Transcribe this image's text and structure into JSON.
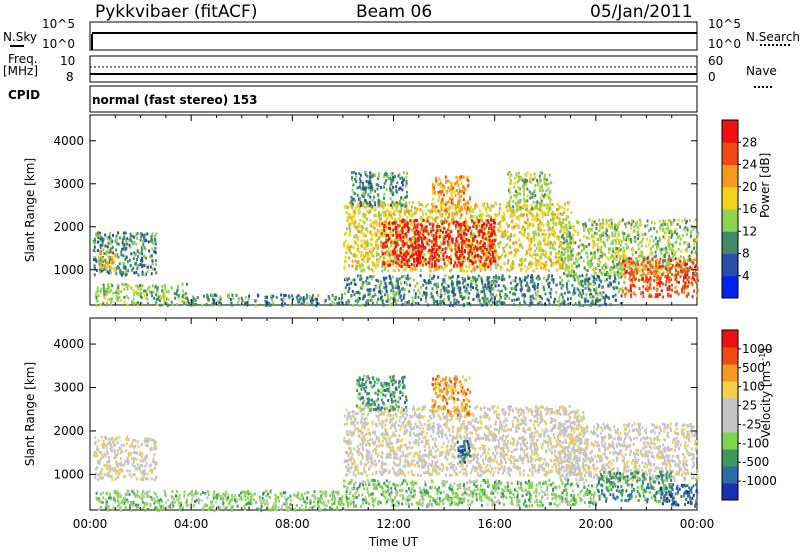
{
  "header": {
    "station": "Pykkvibaer (fitACF)",
    "beam": "Beam 06",
    "date": "05/Jan/2011"
  },
  "status_panels": {
    "nsky_label": "N.Sky",
    "nsearch_label": "N.Search",
    "nsky_ticks": [
      "10^5",
      "10^0"
    ],
    "nsearch_ticks": [
      "10^5",
      "10^0"
    ],
    "freq_label_1": "Freq.",
    "freq_label_2": "[MHz]",
    "freq_ticks": [
      "10",
      "8"
    ],
    "nave_label": "Nave",
    "nave_ticks": [
      "60",
      "0"
    ],
    "cpid_label": "CPID",
    "mode_text": "normal (fast stereo) 153"
  },
  "power_colors": [
    "#0022ee",
    "#2a4fa8",
    "#3f8a6a",
    "#8ed34d",
    "#f2d21a",
    "#f39a1c",
    "#f04a12",
    "#ee1111"
  ],
  "velocity_colors": [
    "#ee1111",
    "#f04a12",
    "#f39a1c",
    "#f6d04a",
    "#c4c4c4",
    "#c4c4c4",
    "#7fd64a",
    "#3e9a5a",
    "#2e6aa8",
    "#1a2fb0"
  ],
  "chart_data": [
    {
      "type": "heatmap",
      "panel": "power",
      "ylabel": "Slant Range [km]",
      "xlabel": "",
      "colorbar_label": "Power [dB]",
      "colorbar_ticks": [
        "28",
        "24",
        "20",
        "16",
        "12",
        "8",
        "4"
      ],
      "colorbar_range": [
        0,
        32
      ],
      "x_ticks": [
        "00:00",
        "04:00",
        "08:00",
        "12:00",
        "16:00",
        "20:00",
        "00:00"
      ],
      "xlim": [
        0,
        24
      ],
      "y_ticks": [
        "4000",
        "3000",
        "2000",
        "1000"
      ],
      "ylim": [
        180,
        4600
      ],
      "regions": [
        {
          "t0": 0.2,
          "t1": 3.8,
          "r0": 200,
          "r1": 700,
          "level": 3
        },
        {
          "t0": 0.1,
          "t1": 2.6,
          "r0": 900,
          "r1": 1900,
          "level": 2
        },
        {
          "t0": 0.3,
          "t1": 1.0,
          "r0": 1000,
          "r1": 1500,
          "level": 4
        },
        {
          "t0": 3.8,
          "t1": 10.0,
          "r0": 200,
          "r1": 450,
          "level": 2
        },
        {
          "t0": 10.0,
          "t1": 19.0,
          "r0": 1000,
          "r1": 2600,
          "level": 4
        },
        {
          "t0": 11.5,
          "t1": 16.0,
          "r0": 1100,
          "r1": 2200,
          "level": 7
        },
        {
          "t0": 10.3,
          "t1": 12.5,
          "r0": 2500,
          "r1": 3300,
          "level": 2
        },
        {
          "t0": 13.5,
          "t1": 15.0,
          "r0": 2300,
          "r1": 3200,
          "level": 5
        },
        {
          "t0": 16.5,
          "t1": 18.2,
          "r0": 2400,
          "r1": 3300,
          "level": 3
        },
        {
          "t0": 18.5,
          "t1": 24.0,
          "r0": 900,
          "r1": 2200,
          "level": 3
        },
        {
          "t0": 21.0,
          "t1": 24.0,
          "r0": 400,
          "r1": 1300,
          "level": 6
        },
        {
          "t0": 10.0,
          "t1": 21.0,
          "r0": 200,
          "r1": 900,
          "level": 2
        }
      ]
    },
    {
      "type": "heatmap",
      "panel": "velocity",
      "ylabel": "Slant Range [km]",
      "xlabel": "Time UT",
      "colorbar_label": "Velocity [m s^-1]",
      "colorbar_ticks": [
        "1000",
        "500",
        "100",
        "25",
        "-25",
        "-100",
        "-500",
        "-1000"
      ],
      "x_ticks": [
        "00:00",
        "04:00",
        "08:00",
        "12:00",
        "16:00",
        "20:00",
        "00:00"
      ],
      "xlim": [
        0,
        24
      ],
      "y_ticks": [
        "4000",
        "3000",
        "2000",
        "1000"
      ],
      "ylim": [
        180,
        4600
      ],
      "regions": [
        {
          "t0": 0.1,
          "t1": 2.6,
          "r0": 900,
          "r1": 1900,
          "level": 4
        },
        {
          "t0": 0.2,
          "t1": 10.0,
          "r0": 200,
          "r1": 650,
          "level": 6
        },
        {
          "t0": 10.0,
          "t1": 19.5,
          "r0": 1000,
          "r1": 2600,
          "level": 4
        },
        {
          "t0": 10.5,
          "t1": 12.5,
          "r0": 2500,
          "r1": 3300,
          "level": 7
        },
        {
          "t0": 13.5,
          "t1": 15.0,
          "r0": 2400,
          "r1": 3300,
          "level": 2
        },
        {
          "t0": 14.5,
          "t1": 15.0,
          "r0": 1300,
          "r1": 1800,
          "level": 8
        },
        {
          "t0": 18.5,
          "t1": 24.0,
          "r0": 900,
          "r1": 2200,
          "level": 4
        },
        {
          "t0": 20.0,
          "t1": 23.0,
          "r0": 400,
          "r1": 1100,
          "level": 7
        },
        {
          "t0": 22.5,
          "t1": 24.0,
          "r0": 300,
          "r1": 800,
          "level": 8
        },
        {
          "t0": 10.0,
          "t1": 20.0,
          "r0": 300,
          "r1": 900,
          "level": 6
        }
      ]
    }
  ]
}
